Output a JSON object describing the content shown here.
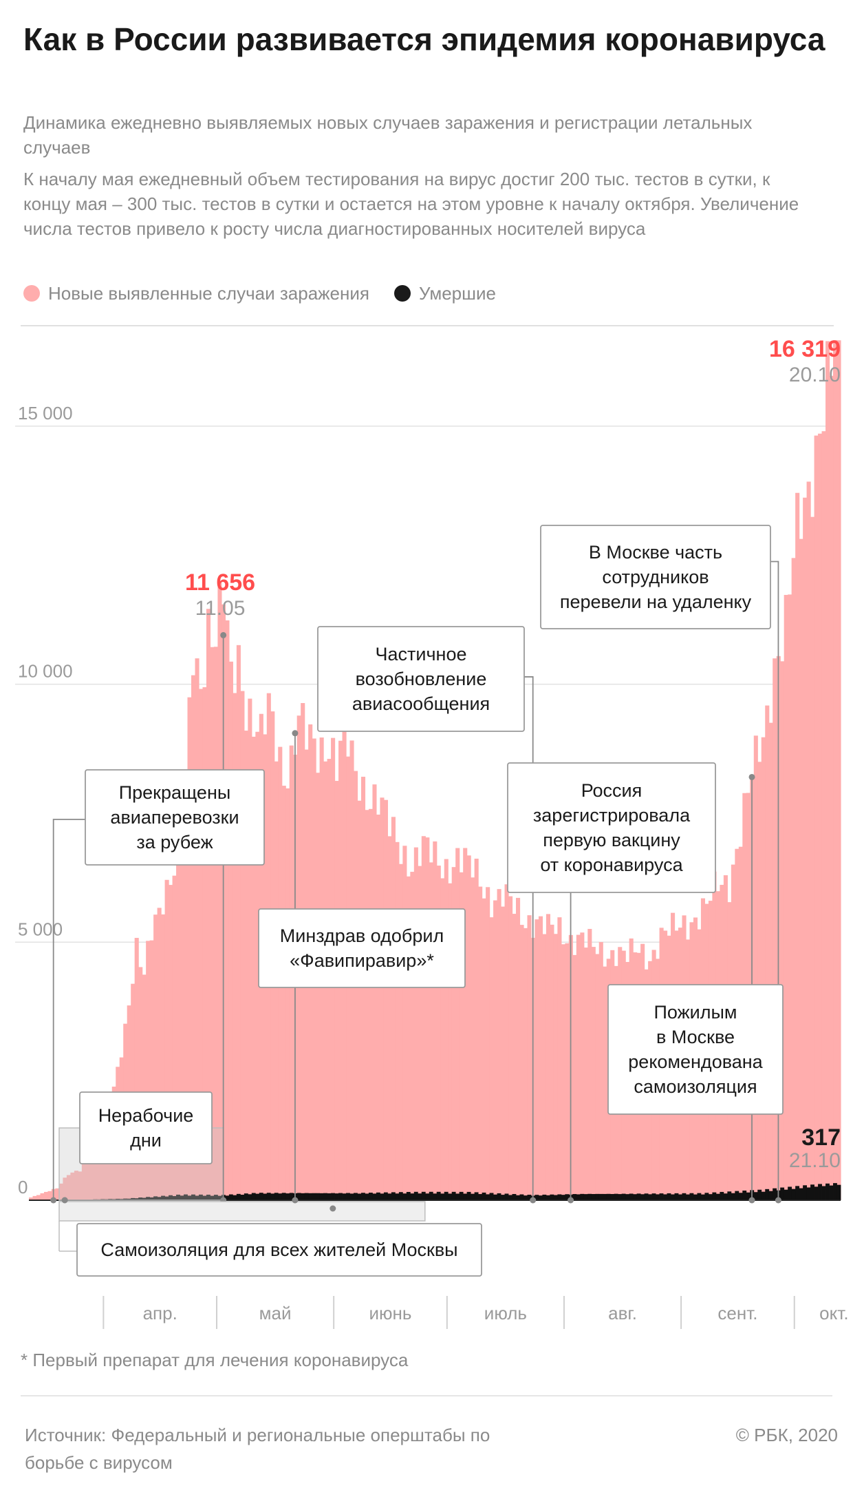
{
  "header": {
    "title": "Как в России развивается эпидемия коронавируса",
    "subtitle": "Динамика ежедневно выявляемых новых случаев заражения и регистрации летальных случаев",
    "description": "К началу мая ежедневный объем тестирования на вирус достиг 200 тыс. тестов в сутки, к концу мая – 300 тыс. тестов в сутки и остается на этом уровне к началу октября. Увеличение числа тестов привело к росту числа диагностированных носителей вируса"
  },
  "legend": [
    {
      "label": "Новые выявленные случаи заражения",
      "color": "#ffadad"
    },
    {
      "label": "Умершие",
      "color": "#1a1a1a"
    }
  ],
  "footnote": "* Первый препарат для лечения коронавируса",
  "footer": {
    "source": "Источник: Федеральный и региональные оперштабы по борьбе с вирусом",
    "copyright": "© РБК, 2020"
  },
  "chart_data": {
    "type": "bar",
    "y_ticks": [
      {
        "value": 0,
        "label": "0"
      },
      {
        "value": 5000,
        "label": "5 000"
      },
      {
        "value": 10000,
        "label": "10 000"
      },
      {
        "value": 15000,
        "label": "15 000"
      }
    ],
    "ylim": [
      0,
      17000
    ],
    "x_start": "2020-03-21",
    "x_end": "2020-10-21",
    "months": [
      {
        "label": "апр.",
        "start": "2020-04-01"
      },
      {
        "label": "май",
        "start": "2020-05-01"
      },
      {
        "label": "июнь",
        "start": "2020-06-01"
      },
      {
        "label": "июль",
        "start": "2020-07-01"
      },
      {
        "label": "авг.",
        "start": "2020-08-01"
      },
      {
        "label": "сент.",
        "start": "2020-09-01"
      },
      {
        "label": "окт.",
        "start": "2020-10-01"
      }
    ],
    "cases_keypoints": [
      [
        "2020-03-21",
        53
      ],
      [
        "2020-03-25",
        163
      ],
      [
        "2020-03-28",
        228
      ],
      [
        "2020-03-31",
        500
      ],
      [
        "2020-04-03",
        601
      ],
      [
        "2020-04-06",
        954
      ],
      [
        "2020-04-09",
        1459
      ],
      [
        "2020-04-12",
        2186
      ],
      [
        "2020-04-15",
        3388
      ],
      [
        "2020-04-18",
        4785
      ],
      [
        "2020-04-20",
        4268
      ],
      [
        "2020-04-22",
        5236
      ],
      [
        "2020-04-25",
        5966
      ],
      [
        "2020-04-28",
        6411
      ],
      [
        "2020-05-01",
        7933
      ],
      [
        "2020-05-03",
        10633
      ],
      [
        "2020-05-05",
        10102
      ],
      [
        "2020-05-07",
        11231
      ],
      [
        "2020-05-09",
        10817
      ],
      [
        "2020-05-11",
        11656
      ],
      [
        "2020-05-13",
        10028
      ],
      [
        "2020-05-15",
        10598
      ],
      [
        "2020-05-17",
        9709
      ],
      [
        "2020-05-19",
        9263
      ],
      [
        "2020-05-21",
        8849
      ],
      [
        "2020-05-23",
        9434
      ],
      [
        "2020-05-25",
        8946
      ],
      [
        "2020-05-27",
        8338
      ],
      [
        "2020-05-29",
        8572
      ],
      [
        "2020-05-31",
        9268
      ],
      [
        "2020-06-02",
        8863
      ],
      [
        "2020-06-05",
        8726
      ],
      [
        "2020-06-08",
        8985
      ],
      [
        "2020-06-10",
        8404
      ],
      [
        "2020-06-12",
        8987
      ],
      [
        "2020-06-15",
        8246
      ],
      [
        "2020-06-18",
        7972
      ],
      [
        "2020-06-21",
        7728
      ],
      [
        "2020-06-24",
        7176
      ],
      [
        "2020-06-27",
        6852
      ],
      [
        "2020-06-30",
        6556
      ],
      [
        "2020-07-03",
        6760
      ],
      [
        "2020-07-06",
        6611
      ],
      [
        "2020-07-09",
        6509
      ],
      [
        "2020-07-12",
        6615
      ],
      [
        "2020-07-15",
        6422
      ],
      [
        "2020-07-18",
        6234
      ],
      [
        "2020-07-21",
        5862
      ],
      [
        "2020-07-24",
        5848
      ],
      [
        "2020-07-27",
        5635
      ],
      [
        "2020-07-30",
        5482
      ],
      [
        "2020-08-02",
        5427
      ],
      [
        "2020-08-05",
        5204
      ],
      [
        "2020-08-08",
        5241
      ],
      [
        "2020-08-11",
        5102
      ],
      [
        "2020-08-14",
        5061
      ],
      [
        "2020-08-17",
        4839
      ],
      [
        "2020-08-20",
        4785
      ],
      [
        "2020-08-23",
        4852
      ],
      [
        "2020-08-26",
        4676
      ],
      [
        "2020-08-29",
        4829
      ],
      [
        "2020-09-01",
        4729
      ],
      [
        "2020-09-04",
        5110
      ],
      [
        "2020-09-07",
        5185
      ],
      [
        "2020-09-10",
        5363
      ],
      [
        "2020-09-13",
        5509
      ],
      [
        "2020-09-16",
        5670
      ],
      [
        "2020-09-19",
        6065
      ],
      [
        "2020-09-22",
        6215
      ],
      [
        "2020-09-25",
        7212
      ],
      [
        "2020-09-28",
        8135
      ],
      [
        "2020-10-01",
        8945
      ],
      [
        "2020-10-04",
        10499
      ],
      [
        "2020-10-07",
        11115
      ],
      [
        "2020-10-10",
        12846
      ],
      [
        "2020-10-13",
        13868
      ],
      [
        "2020-10-16",
        15150
      ],
      [
        "2020-10-19",
        15982
      ],
      [
        "2020-10-20",
        16319
      ],
      [
        "2020-10-21",
        15700
      ]
    ],
    "deaths_keypoints": [
      [
        "2020-03-21",
        0
      ],
      [
        "2020-03-31",
        4
      ],
      [
        "2020-04-15",
        28
      ],
      [
        "2020-04-30",
        101
      ],
      [
        "2020-05-11",
        94
      ],
      [
        "2020-05-20",
        135
      ],
      [
        "2020-05-31",
        138
      ],
      [
        "2020-06-15",
        134
      ],
      [
        "2020-07-01",
        147
      ],
      [
        "2020-07-15",
        144
      ],
      [
        "2020-08-01",
        95
      ],
      [
        "2020-08-15",
        121
      ],
      [
        "2020-09-01",
        123
      ],
      [
        "2020-09-15",
        125
      ],
      [
        "2020-10-01",
        186
      ],
      [
        "2020-10-15",
        286
      ],
      [
        "2020-10-21",
        317
      ]
    ],
    "peaks": [
      {
        "value_label": "11 656",
        "date_label": "11.05",
        "date": "2020-05-11",
        "value": 11656,
        "color": "#ff4d4d"
      },
      {
        "value_label": "16 319",
        "date_label": "20.10",
        "date": "2020-10-20",
        "value": 16319,
        "color": "#ff4d4d"
      },
      {
        "value_label": "317",
        "date_label": "21.10",
        "date": "2020-10-21",
        "value": 317,
        "color": "#1a1a1a"
      }
    ],
    "annotations": [
      {
        "name": "flights-stopped",
        "lines": [
          "Прекращены",
          "авиаперевозки",
          "за рубеж"
        ],
        "date": "2020-03-27"
      },
      {
        "name": "non-working-days",
        "lines": [
          "Нерабочие",
          "дни"
        ],
        "date": "2020-03-30",
        "end_date": "2020-05-11"
      },
      {
        "name": "moscow-self-isolation",
        "lines": [
          "Самоизоляция для всех жителей Москвы"
        ],
        "date": "2020-03-30",
        "end_date": "2020-06-09"
      },
      {
        "name": "favipiravir-approved",
        "lines": [
          "Минздрав одобрил",
          "«Фавипиравир»*"
        ],
        "date": "2020-05-30"
      },
      {
        "name": "flights-resumed",
        "lines": [
          "Частичное",
          "возобновление",
          "авиасообщения"
        ],
        "date": "2020-08-01"
      },
      {
        "name": "vaccine-registered",
        "lines": [
          "Россия",
          "зарегистрировала",
          "первую вакцину",
          "от коронавируса"
        ],
        "date": "2020-08-11"
      },
      {
        "name": "elderly-self-isolation",
        "lines": [
          "Пожилым",
          "в Москве",
          "рекомендована",
          "самоизоляция"
        ],
        "date": "2020-09-28"
      },
      {
        "name": "remote-work",
        "lines": [
          "В Москве часть",
          "сотрудников",
          "перевели на удаленку"
        ],
        "date": "2020-10-05"
      }
    ]
  }
}
